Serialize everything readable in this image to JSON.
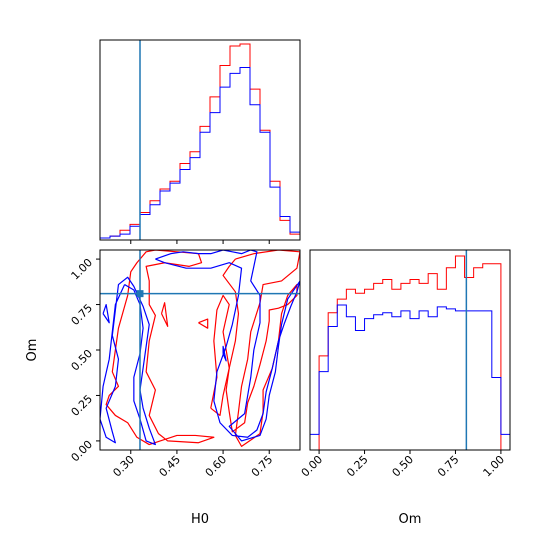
{
  "chart_data": {
    "type": "corner",
    "colors": {
      "red": "#ff0000",
      "blue": "#0000ff",
      "truth": "#1f77b4"
    },
    "truth": {
      "H0": 0.33,
      "Om": 0.81
    },
    "axes": {
      "H0": {
        "label": "H0",
        "range": [
          0.2,
          0.85
        ],
        "ticks": [
          0.3,
          0.45,
          0.6,
          0.75
        ],
        "tick_labels": [
          "0.30",
          "0.45",
          "0.60",
          "0.75"
        ]
      },
      "Om": {
        "label": "Om",
        "range": [
          -0.05,
          1.05
        ],
        "ticks": [
          0.0,
          0.25,
          0.5,
          0.75,
          1.0
        ],
        "tick_labels": [
          "0.00",
          "0.25",
          "0.50",
          "0.75",
          "1.00"
        ]
      }
    },
    "hist_H0": {
      "edges": [
        0.2,
        0.2325,
        0.265,
        0.2975,
        0.33,
        0.3625,
        0.395,
        0.4275,
        0.46,
        0.4925,
        0.525,
        0.5575,
        0.59,
        0.6225,
        0.655,
        0.6875,
        0.72,
        0.7525,
        0.785,
        0.8175,
        0.85
      ],
      "series": [
        {
          "color": "red",
          "counts": [
            0.01,
            0.02,
            0.05,
            0.08,
            0.14,
            0.2,
            0.26,
            0.3,
            0.39,
            0.45,
            0.58,
            0.73,
            0.89,
            0.99,
            1.0,
            0.77,
            0.56,
            0.3,
            0.1,
            0.03
          ]
        },
        {
          "color": "blue",
          "counts": [
            0.01,
            0.02,
            0.03,
            0.07,
            0.13,
            0.18,
            0.25,
            0.29,
            0.36,
            0.42,
            0.55,
            0.65,
            0.78,
            0.85,
            0.88,
            0.69,
            0.55,
            0.27,
            0.12,
            0.04
          ]
        }
      ]
    },
    "hist_Om": {
      "edges": [
        -0.05,
        0.0,
        0.05,
        0.1,
        0.15,
        0.2,
        0.25,
        0.3,
        0.35,
        0.4,
        0.45,
        0.5,
        0.55,
        0.6,
        0.65,
        0.7,
        0.75,
        0.8,
        0.85,
        0.9,
        0.95,
        1.0,
        1.05
      ],
      "series": [
        {
          "color": "red",
          "counts": [
            0.0,
            0.48,
            0.7,
            0.77,
            0.82,
            0.8,
            0.82,
            0.85,
            0.87,
            0.82,
            0.85,
            0.87,
            0.85,
            0.9,
            0.82,
            0.93,
            0.99,
            0.88,
            0.93,
            0.95,
            0.95,
            0.0
          ]
        },
        {
          "color": "blue",
          "counts": [
            0.08,
            0.4,
            0.63,
            0.74,
            0.68,
            0.61,
            0.67,
            0.69,
            0.7,
            0.68,
            0.71,
            0.67,
            0.71,
            0.68,
            0.73,
            0.72,
            0.71,
            0.71,
            0.71,
            0.71,
            0.37,
            0.08
          ]
        }
      ]
    },
    "contours": [
      {
        "color": "red",
        "points": [
          [
            0.32,
            0.98
          ],
          [
            0.35,
            1.04
          ],
          [
            0.38,
            1.05
          ],
          [
            0.45,
            1.04
          ],
          [
            0.52,
            1.03
          ],
          [
            0.53,
            0.98
          ],
          [
            0.49,
            0.96
          ],
          [
            0.41,
            0.98
          ],
          [
            0.35,
            0.96
          ],
          [
            0.36,
            0.88
          ],
          [
            0.36,
            0.75
          ],
          [
            0.38,
            0.69
          ],
          [
            0.36,
            0.55
          ],
          [
            0.35,
            0.38
          ],
          [
            0.38,
            0.28
          ],
          [
            0.36,
            0.14
          ],
          [
            0.39,
            0.04
          ],
          [
            0.42,
            0.0
          ],
          [
            0.52,
            -0.01
          ],
          [
            0.57,
            0.02
          ],
          [
            0.51,
            0.03
          ],
          [
            0.45,
            0.03
          ],
          [
            0.36,
            -0.02
          ],
          [
            0.32,
            0.02
          ],
          [
            0.29,
            0.1
          ],
          [
            0.25,
            0.14
          ],
          [
            0.22,
            0.2
          ],
          [
            0.23,
            0.25
          ],
          [
            0.26,
            0.3
          ],
          [
            0.24,
            0.38
          ],
          [
            0.25,
            0.5
          ],
          [
            0.26,
            0.62
          ],
          [
            0.29,
            0.8
          ],
          [
            0.3,
            0.93
          ],
          [
            0.32,
            0.98
          ]
        ]
      },
      {
        "color": "red",
        "points": [
          [
            0.64,
            1.0
          ],
          [
            0.7,
            1.03
          ],
          [
            0.78,
            1.05
          ],
          [
            0.85,
            1.04
          ],
          [
            0.84,
            0.95
          ],
          [
            0.79,
            0.88
          ],
          [
            0.73,
            0.86
          ],
          [
            0.72,
            0.76
          ],
          [
            0.69,
            0.6
          ],
          [
            0.68,
            0.45
          ],
          [
            0.66,
            0.3
          ],
          [
            0.65,
            0.16
          ],
          [
            0.64,
            0.03
          ],
          [
            0.66,
            -0.03
          ],
          [
            0.72,
            0.04
          ],
          [
            0.73,
            0.16
          ],
          [
            0.73,
            0.28
          ],
          [
            0.76,
            0.4
          ],
          [
            0.78,
            0.55
          ],
          [
            0.79,
            0.7
          ],
          [
            0.81,
            0.8
          ],
          [
            0.84,
            0.86
          ],
          [
            0.84,
            0.8
          ],
          [
            0.81,
            0.75
          ],
          [
            0.78,
            0.73
          ],
          [
            0.75,
            0.72
          ],
          [
            0.75,
            0.66
          ],
          [
            0.74,
            0.55
          ],
          [
            0.72,
            0.42
          ],
          [
            0.7,
            0.3
          ],
          [
            0.68,
            0.21
          ],
          [
            0.67,
            0.1
          ],
          [
            0.63,
            0.05
          ],
          [
            0.62,
            0.16
          ],
          [
            0.61,
            0.28
          ],
          [
            0.62,
            0.4
          ],
          [
            0.64,
            0.55
          ],
          [
            0.65,
            0.7
          ],
          [
            0.64,
            0.82
          ],
          [
            0.6,
            0.91
          ],
          [
            0.62,
            0.96
          ],
          [
            0.64,
            1.0
          ]
        ]
      },
      {
        "color": "red",
        "points": [
          [
            0.56,
            0.18
          ],
          [
            0.58,
            0.35
          ],
          [
            0.57,
            0.55
          ],
          [
            0.58,
            0.72
          ],
          [
            0.6,
            0.8
          ],
          [
            0.62,
            0.75
          ],
          [
            0.6,
            0.6
          ],
          [
            0.62,
            0.4
          ],
          [
            0.6,
            0.25
          ],
          [
            0.59,
            0.14
          ],
          [
            0.56,
            0.18
          ]
        ]
      },
      {
        "color": "red",
        "points": [
          [
            0.52,
            0.65
          ],
          [
            0.55,
            0.62
          ],
          [
            0.55,
            0.67
          ],
          [
            0.52,
            0.65
          ]
        ]
      },
      {
        "color": "red",
        "points": [
          [
            0.4,
            0.7
          ],
          [
            0.42,
            0.63
          ],
          [
            0.41,
            0.76
          ],
          [
            0.4,
            0.7
          ]
        ]
      },
      {
        "color": "blue",
        "points": [
          [
            0.38,
            1.0
          ],
          [
            0.43,
            1.03
          ],
          [
            0.47,
            1.04
          ],
          [
            0.52,
            1.03
          ],
          [
            0.56,
            1.03
          ],
          [
            0.6,
            1.05
          ],
          [
            0.63,
            1.04
          ],
          [
            0.66,
            1.03
          ],
          [
            0.69,
            1.05
          ],
          [
            0.71,
            1.04
          ],
          [
            0.7,
            0.96
          ],
          [
            0.69,
            0.88
          ],
          [
            0.72,
            0.8
          ],
          [
            0.72,
            0.65
          ],
          [
            0.7,
            0.5
          ],
          [
            0.69,
            0.35
          ],
          [
            0.67,
            0.15
          ],
          [
            0.62,
            0.08
          ],
          [
            0.66,
            0.0
          ],
          [
            0.72,
            0.03
          ],
          [
            0.74,
            0.12
          ],
          [
            0.75,
            0.25
          ],
          [
            0.77,
            0.38
          ],
          [
            0.78,
            0.52
          ],
          [
            0.79,
            0.64
          ],
          [
            0.81,
            0.78
          ],
          [
            0.85,
            0.88
          ],
          [
            0.84,
            0.82
          ],
          [
            0.82,
            0.74
          ],
          [
            0.8,
            0.65
          ],
          [
            0.78,
            0.55
          ],
          [
            0.76,
            0.4
          ],
          [
            0.74,
            0.27
          ],
          [
            0.73,
            0.15
          ],
          [
            0.71,
            0.06
          ],
          [
            0.68,
            0.02
          ],
          [
            0.63,
            0.03
          ],
          [
            0.59,
            0.1
          ],
          [
            0.57,
            0.22
          ],
          [
            0.58,
            0.38
          ],
          [
            0.61,
            0.52
          ],
          [
            0.63,
            0.64
          ],
          [
            0.65,
            0.8
          ],
          [
            0.66,
            0.95
          ],
          [
            0.62,
            0.98
          ],
          [
            0.56,
            0.95
          ],
          [
            0.48,
            0.95
          ],
          [
            0.41,
            0.98
          ],
          [
            0.38,
            1.0
          ]
        ]
      },
      {
        "color": "blue",
        "points": [
          [
            0.28,
            0.86
          ],
          [
            0.31,
            0.83
          ],
          [
            0.33,
            0.75
          ],
          [
            0.34,
            0.62
          ],
          [
            0.33,
            0.48
          ],
          [
            0.31,
            0.35
          ],
          [
            0.31,
            0.22
          ],
          [
            0.33,
            0.12
          ],
          [
            0.35,
            0.0
          ],
          [
            0.38,
            -0.02
          ],
          [
            0.36,
            0.07
          ],
          [
            0.34,
            0.18
          ],
          [
            0.33,
            0.28
          ],
          [
            0.34,
            0.4
          ],
          [
            0.35,
            0.52
          ],
          [
            0.36,
            0.64
          ],
          [
            0.34,
            0.74
          ],
          [
            0.31,
            0.85
          ],
          [
            0.29,
            0.9
          ],
          [
            0.26,
            0.86
          ],
          [
            0.25,
            0.72
          ],
          [
            0.24,
            0.58
          ],
          [
            0.26,
            0.45
          ],
          [
            0.25,
            0.3
          ],
          [
            0.22,
            0.18
          ],
          [
            0.24,
            0.05
          ],
          [
            0.25,
            -0.01
          ],
          [
            0.22,
            0.02
          ],
          [
            0.2,
            0.12
          ],
          [
            0.21,
            0.3
          ],
          [
            0.23,
            0.45
          ],
          [
            0.24,
            0.6
          ],
          [
            0.25,
            0.75
          ],
          [
            0.28,
            0.86
          ]
        ]
      },
      {
        "color": "blue",
        "points": [
          [
            0.21,
            0.7
          ],
          [
            0.23,
            0.65
          ],
          [
            0.22,
            0.75
          ],
          [
            0.21,
            0.7
          ]
        ]
      },
      {
        "color": "blue",
        "points": [
          [
            0.6,
            0.48
          ],
          [
            0.61,
            0.44
          ],
          [
            0.6,
            0.52
          ],
          [
            0.6,
            0.48
          ]
        ]
      }
    ]
  }
}
